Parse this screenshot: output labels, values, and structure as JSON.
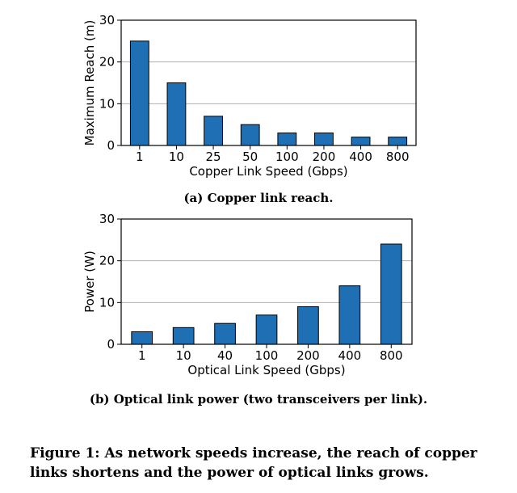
{
  "chart_data": [
    {
      "type": "bar",
      "categories": [
        "1",
        "10",
        "25",
        "50",
        "100",
        "200",
        "400",
        "800"
      ],
      "values": [
        25,
        15,
        7,
        5,
        3,
        3,
        2,
        2
      ],
      "xlabel": "Copper Link Speed (Gbps)",
      "ylabel": "Maximum Reach (m)",
      "ylim": [
        0,
        30
      ],
      "yticks": [
        0,
        10,
        20,
        30
      ],
      "grid": true,
      "bar_color": "#1f6fb4",
      "caption": "(a) Copper link reach."
    },
    {
      "type": "bar",
      "categories": [
        "1",
        "10",
        "40",
        "100",
        "200",
        "400",
        "800"
      ],
      "values": [
        3,
        4,
        5,
        7,
        9,
        14,
        24
      ],
      "xlabel": "Optical Link Speed (Gbps)",
      "ylabel": "Power (W)",
      "ylim": [
        0,
        30
      ],
      "yticks": [
        0,
        10,
        20,
        30
      ],
      "grid": true,
      "bar_color": "#1f6fb4",
      "caption": "(b) Optical link power (two transceivers per link)."
    }
  ],
  "figure_caption": "Figure 1: As network speeds increase, the reach of copper links shortens and the power of optical links grows."
}
